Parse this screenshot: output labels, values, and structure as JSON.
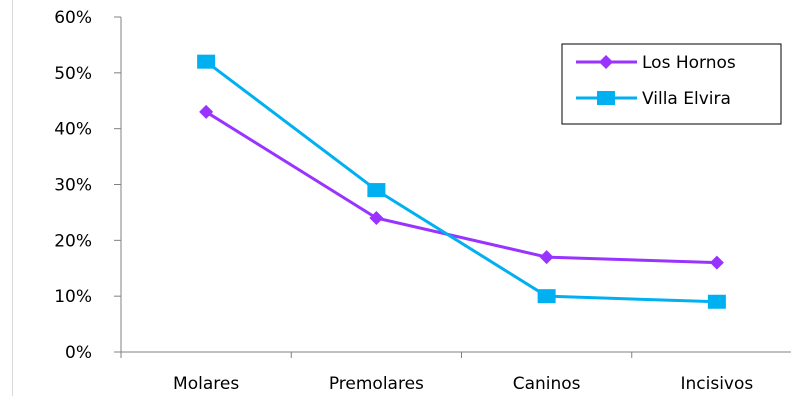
{
  "chart_data": {
    "type": "line",
    "title": "",
    "xlabel": "",
    "ylabel": "",
    "categories": [
      "Molares",
      "Premolares",
      "Caninos",
      "Incisivos"
    ],
    "ylim": [
      0,
      60
    ],
    "yticks": [
      "0%",
      "10%",
      "20%",
      "30%",
      "40%",
      "50%",
      "60%"
    ],
    "grid": false,
    "legend_position": "top-right",
    "series": [
      {
        "name": "Los Hornos",
        "values": [
          43,
          24,
          17,
          16
        ],
        "color": "#9933ff",
        "marker": "diamond"
      },
      {
        "name": "Villa Elvira",
        "values": [
          52,
          29,
          10,
          9
        ],
        "color": "#00b0f0",
        "marker": "square"
      }
    ]
  }
}
